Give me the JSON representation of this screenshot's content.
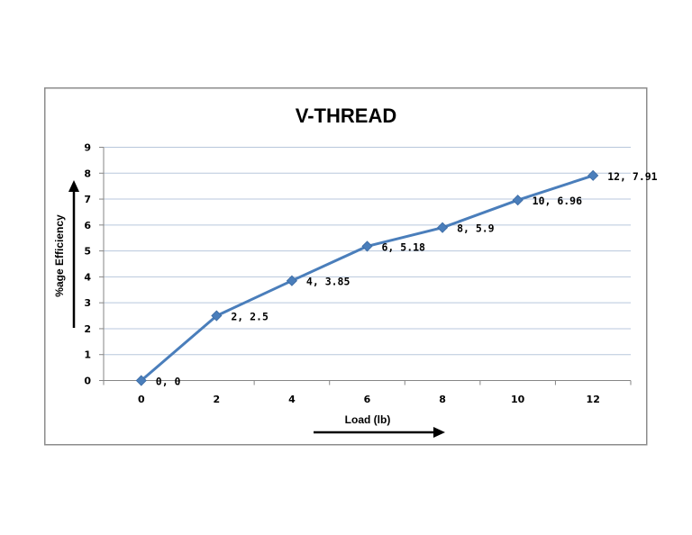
{
  "chart_data": {
    "type": "line",
    "title": "V-THREAD",
    "xlabel": "Load (lb)",
    "ylabel": "%age Efficiency",
    "xlim": [
      0,
      12
    ],
    "ylim": [
      0,
      9
    ],
    "x_ticks": [
      0,
      2,
      4,
      6,
      8,
      10,
      12
    ],
    "y_ticks": [
      0,
      1,
      2,
      3,
      4,
      5,
      6,
      7,
      8,
      9
    ],
    "grid": "horizontal",
    "legend": "none",
    "series": [
      {
        "color": "#4a7ebb",
        "marker": "diamond",
        "points": [
          {
            "x": 0,
            "y": 0,
            "label": "0, 0"
          },
          {
            "x": 2,
            "y": 2.5,
            "label": "2, 2.5"
          },
          {
            "x": 4,
            "y": 3.85,
            "label": "4, 3.85"
          },
          {
            "x": 6,
            "y": 5.18,
            "label": "6, 5.18"
          },
          {
            "x": 8,
            "y": 5.9,
            "label": "8, 5.9"
          },
          {
            "x": 10,
            "y": 6.96,
            "label": "10, 6.96"
          },
          {
            "x": 12,
            "y": 7.91,
            "label": "12, 7.91"
          }
        ]
      }
    ]
  }
}
